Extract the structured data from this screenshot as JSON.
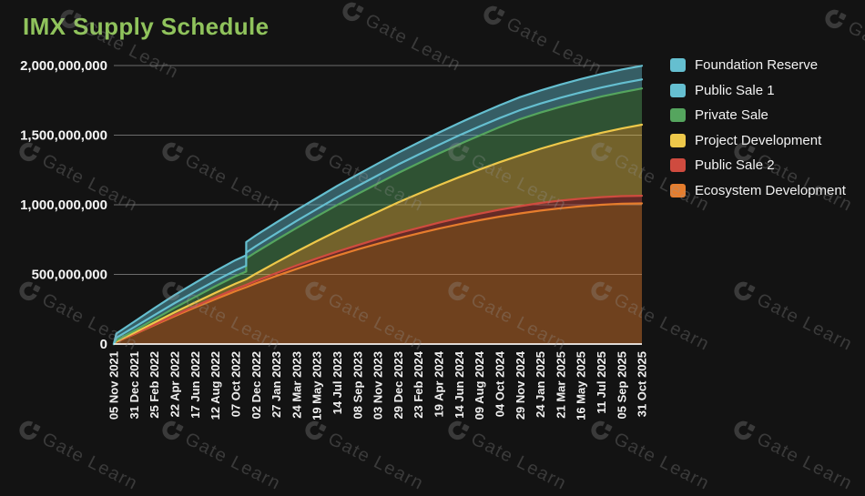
{
  "page": {
    "title": "IMX Supply Schedule",
    "background": "#131313",
    "title_color": "#90c35c"
  },
  "watermark": {
    "logo_glyph": "G",
    "text": "Gate Learn"
  },
  "chart_data": {
    "type": "area",
    "stacked": true,
    "title": "IMX Supply Schedule",
    "grid": "horizontal",
    "legend_position": "right",
    "y_axis": {
      "min": 0,
      "max": 2000000000,
      "tick_labels": [
        "2,000,000,000",
        "1,500,000,000",
        "1,000,000,000",
        "500,000,000",
        "0"
      ]
    },
    "x_axis": {
      "tick_labels": [
        "05 Nov 2021",
        "31 Dec 2021",
        "25 Feb 2022",
        "22 Apr 2022",
        "17 Jun 2022",
        "12 Aug 2022",
        "07 Oct 2022",
        "02 Dec 2022",
        "27 Jan 2023",
        "24 Mar 2023",
        "19 May 2023",
        "14 Jul 2023",
        "08 Sep 2023",
        "03 Nov 2023",
        "29 Dec 2023",
        "23 Feb 2024",
        "19 Apr 2024",
        "14 Jun 2024",
        "09 Aug 2024",
        "04 Oct 2024",
        "29 Nov 2024",
        "24 Jan 2025",
        "21 Mar 2025",
        "16 May 2025",
        "11 Jul 2025",
        "05 Sep 2025",
        "31 Oct 2025"
      ]
    },
    "legend_order_top_to_bottom": [
      "Foundation Reserve",
      "Public Sale 1",
      "Private Sale",
      "Project Development",
      "Public Sale 2",
      "Ecosystem Development"
    ],
    "values_unit": "millions of IMX tokens",
    "sample_dates": [
      "05 Nov 2021",
      "12 Nov 2021",
      "31 Dec 2021",
      "25 Feb 2022",
      "22 Apr 2022",
      "17 Jun 2022",
      "12 Aug 2022",
      "07 Oct 2022",
      "05 Nov 2022",
      "05 Nov 2022",
      "02 Dec 2022",
      "27 Jan 2023",
      "24 Mar 2023",
      "19 May 2023",
      "14 Jul 2023",
      "08 Sep 2023",
      "03 Nov 2023",
      "29 Dec 2023",
      "23 Feb 2024",
      "19 Apr 2024",
      "14 Jun 2024",
      "09 Aug 2024",
      "04 Oct 2024",
      "29 Nov 2024",
      "24 Jan 2025",
      "21 Mar 2025",
      "16 May 2025",
      "11 Jul 2025",
      "05 Sep 2025",
      "31 Oct 2025"
    ],
    "series_bottom_to_top": [
      {
        "name": "Ecosystem Development",
        "color": "#e67d2d",
        "values": [
          0,
          15,
          69,
          135,
          200,
          262,
          322,
          380,
          408,
          408,
          436,
          489,
          540,
          589,
          635,
          679,
          720,
          759,
          795,
          829,
          860,
          889,
          915,
          938,
          958,
          975,
          989,
          1000,
          1007,
          1010
        ]
      },
      {
        "name": "Public Sale 2",
        "color": "#cf4b3f",
        "values": [
          0,
          2,
          3,
          5,
          8,
          10,
          13,
          16,
          17,
          17,
          18,
          21,
          24,
          26,
          29,
          31,
          34,
          37,
          39,
          42,
          45,
          47,
          50,
          52,
          55,
          55,
          55,
          55,
          55,
          55
        ]
      },
      {
        "name": "Project Development",
        "color": "#eec84a",
        "values": [
          0,
          2,
          8,
          14,
          20,
          26,
          32,
          38,
          40,
          40,
          52,
          76,
          100,
          124,
          148,
          172,
          196,
          221,
          245,
          269,
          293,
          317,
          341,
          365,
          389,
          414,
          438,
          462,
          486,
          510
        ]
      },
      {
        "name": "Private Sale",
        "color": "#55a55e",
        "values": [
          0,
          8,
          15,
          24,
          32,
          40,
          48,
          54,
          55,
          150,
          154,
          162,
          170,
          178,
          187,
          195,
          203,
          211,
          219,
          227,
          236,
          244,
          252,
          260,
          260,
          260,
          260,
          260,
          260,
          260
        ]
      },
      {
        "name": "Public Sale 1",
        "color": "#65bfd0",
        "values": [
          0,
          18,
          25,
          30,
          34,
          37,
          39,
          41,
          42,
          42,
          44,
          47,
          50,
          52,
          55,
          57,
          59,
          61,
          62,
          63,
          64,
          65,
          65,
          65,
          65,
          65,
          65,
          65,
          65,
          65
        ]
      },
      {
        "name": "Foundation Reserve",
        "color": "#65bfd0",
        "values": [
          0,
          30,
          40,
          50,
          58,
          64,
          70,
          74,
          75,
          75,
          77,
          78,
          79,
          80,
          82,
          83,
          84,
          85,
          87,
          88,
          89,
          90,
          92,
          93,
          94,
          95,
          96,
          97,
          98,
          98
        ]
      }
    ]
  }
}
